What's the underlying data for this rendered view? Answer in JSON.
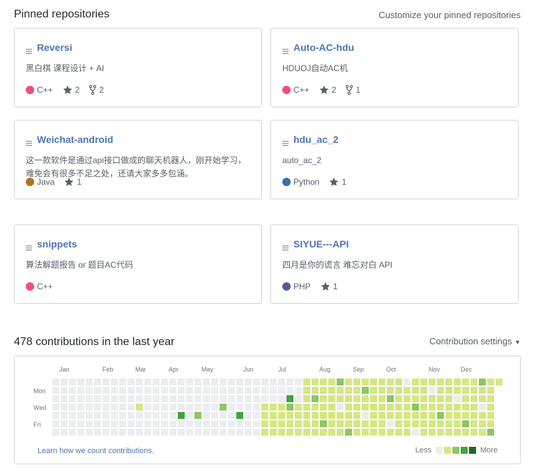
{
  "pinned": {
    "title": "Pinned repositories",
    "customize": "Customize your pinned repositories",
    "repos": [
      {
        "name": "Reversi",
        "description": "黑白棋 课程设计 + AI",
        "language": "C++",
        "lang_color": "#f34b7d",
        "stars": "2",
        "forks": "2"
      },
      {
        "name": "Auto-AC-hdu",
        "description": "HDUOJ自动AC机",
        "language": "C++",
        "lang_color": "#f34b7d",
        "stars": "2",
        "forks": "1"
      },
      {
        "name": "Weichat-android",
        "description": "这一款软件是通过api接口做成的聊天机器人，刚开始学习，\n难免会有很多不足之处，还请大家多多包涵。",
        "language": "Java",
        "lang_color": "#b07219",
        "stars": "1",
        "forks": null
      },
      {
        "name": "hdu_ac_2",
        "description": "auto_ac_2",
        "language": "Python",
        "lang_color": "#3572A5",
        "stars": "1",
        "forks": null
      },
      {
        "name": "snippets",
        "description": "算法解题报告 or 题目AC代码",
        "language": "C++",
        "lang_color": "#f34b7d",
        "stars": null,
        "forks": null
      },
      {
        "name": "SIYUE---API",
        "description": "四月是你的谎言 难忘对白 API",
        "language": "PHP",
        "lang_color": "#4F5D95",
        "stars": "1",
        "forks": null
      }
    ]
  },
  "contributions": {
    "title": "478 contributions in the last year",
    "settings": "Contribution settings",
    "months": [
      "Jan",
      "Feb",
      "Mar",
      "Apr",
      "May",
      "Jun",
      "Jul",
      "Aug",
      "Sep",
      "Oct",
      "Nov",
      "Dec"
    ],
    "days": [
      "Mon",
      "Wed",
      "Fri"
    ],
    "learn": "Learn how we count contributions.",
    "less": "Less",
    "more": "More",
    "colors": [
      "#ebedf0",
      "#d6e685",
      "#8cc665",
      "#44a340",
      "#1e6823"
    ]
  }
}
